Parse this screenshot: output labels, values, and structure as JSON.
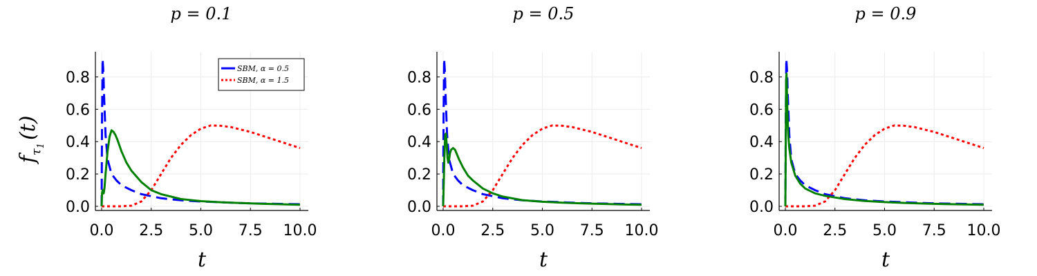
{
  "chart_data": [
    {
      "type": "line",
      "title": "p = 0.1",
      "xlabel": "t",
      "ylabel": "f_τ1(t)",
      "ylabel_main": "f",
      "ylabel_sub": "τ",
      "ylabel_subsub": "1",
      "ylabel_arg": "(t)",
      "xlim": [
        0,
        10
      ],
      "ylim": [
        0,
        0.93
      ],
      "xticks": [
        "0.0",
        "2.5",
        "5.0",
        "7.5",
        "10.0"
      ],
      "yticks": [
        "0.0",
        "0.2",
        "0.4",
        "0.6",
        "0.8"
      ],
      "grid": true,
      "legend": {
        "placement": "top-right",
        "entries": [
          "SBM, α = 0.5",
          "SBM, α = 1.5"
        ]
      },
      "series": [
        {
          "name": "SBM, α = 0.5",
          "color": "#0000ff",
          "style": "dashed",
          "x": [
            0.0,
            0.02,
            0.05,
            0.08,
            0.1,
            0.12,
            0.15,
            0.2,
            0.3,
            0.5,
            0.75,
            1.0,
            1.5,
            2.0,
            3.0,
            4.0,
            5.0,
            6.0,
            7.0,
            8.0,
            9.0,
            10.0
          ],
          "y": [
            0.0,
            0.55,
            0.91,
            0.85,
            0.78,
            0.7,
            0.6,
            0.44,
            0.29,
            0.2,
            0.16,
            0.13,
            0.1,
            0.075,
            0.05,
            0.037,
            0.03,
            0.025,
            0.02,
            0.017,
            0.015,
            0.013
          ]
        },
        {
          "name": "SBM, α = 1.5",
          "color": "#ff0000",
          "style": "dotted",
          "x": [
            0.0,
            0.5,
            1.0,
            1.5,
            2.0,
            2.5,
            3.0,
            3.5,
            4.0,
            4.5,
            5.0,
            5.5,
            6.0,
            6.5,
            7.0,
            7.5,
            8.0,
            8.5,
            9.0,
            9.5,
            10.0
          ],
          "y": [
            0.0,
            0.0,
            0.0,
            0.004,
            0.03,
            0.1,
            0.2,
            0.3,
            0.38,
            0.44,
            0.48,
            0.5,
            0.498,
            0.49,
            0.475,
            0.46,
            0.44,
            0.42,
            0.4,
            0.38,
            0.36
          ]
        },
        {
          "color": "#008000",
          "style": "solid",
          "x": [
            0.0,
            0.02,
            0.05,
            0.08,
            0.1,
            0.12,
            0.15,
            0.2,
            0.3,
            0.4,
            0.5,
            0.6,
            0.7,
            0.8,
            1.0,
            1.25,
            1.5,
            2.0,
            2.5,
            3.0,
            4.0,
            5.0,
            6.0,
            7.0,
            8.0,
            9.0,
            10.0
          ],
          "y": [
            0.0,
            0.08,
            0.1,
            0.09,
            0.08,
            0.09,
            0.12,
            0.2,
            0.34,
            0.43,
            0.47,
            0.46,
            0.44,
            0.41,
            0.34,
            0.27,
            0.22,
            0.15,
            0.1,
            0.075,
            0.045,
            0.032,
            0.025,
            0.02,
            0.016,
            0.013,
            0.01
          ]
        }
      ]
    },
    {
      "type": "line",
      "title": "p = 0.5",
      "xlabel": "t",
      "xlim": [
        0,
        10
      ],
      "ylim": [
        0,
        0.93
      ],
      "xticks": [
        "0.0",
        "2.5",
        "5.0",
        "7.5",
        "10.0"
      ],
      "yticks": [
        "0.0",
        "0.2",
        "0.4",
        "0.6",
        "0.8"
      ],
      "grid": true,
      "series": [
        {
          "name": "SBM, α = 0.5",
          "color": "#0000ff",
          "style": "dashed",
          "x": [
            0.0,
            0.02,
            0.05,
            0.08,
            0.1,
            0.12,
            0.15,
            0.2,
            0.3,
            0.5,
            0.75,
            1.0,
            1.5,
            2.0,
            3.0,
            4.0,
            5.0,
            6.0,
            7.0,
            8.0,
            9.0,
            10.0
          ],
          "y": [
            0.0,
            0.55,
            0.91,
            0.85,
            0.78,
            0.7,
            0.6,
            0.44,
            0.29,
            0.2,
            0.16,
            0.13,
            0.1,
            0.075,
            0.05,
            0.037,
            0.03,
            0.025,
            0.02,
            0.017,
            0.015,
            0.013
          ]
        },
        {
          "name": "SBM, α = 1.5",
          "color": "#ff0000",
          "style": "dotted",
          "x": [
            0.0,
            0.5,
            1.0,
            1.5,
            2.0,
            2.5,
            3.0,
            3.5,
            4.0,
            4.5,
            5.0,
            5.5,
            6.0,
            6.5,
            7.0,
            7.5,
            8.0,
            8.5,
            9.0,
            9.5,
            10.0
          ],
          "y": [
            0.0,
            0.0,
            0.0,
            0.004,
            0.03,
            0.1,
            0.2,
            0.3,
            0.38,
            0.44,
            0.48,
            0.5,
            0.498,
            0.49,
            0.475,
            0.46,
            0.44,
            0.42,
            0.4,
            0.38,
            0.36
          ]
        },
        {
          "color": "#008000",
          "style": "solid",
          "x": [
            0.0,
            0.03,
            0.06,
            0.1,
            0.14,
            0.18,
            0.22,
            0.26,
            0.3,
            0.35,
            0.4,
            0.5,
            0.6,
            0.7,
            0.8,
            1.0,
            1.25,
            1.5,
            2.0,
            2.5,
            3.0,
            4.0,
            5.0,
            6.0,
            7.0,
            8.0,
            9.0,
            10.0
          ],
          "y": [
            0.0,
            0.15,
            0.3,
            0.44,
            0.45,
            0.38,
            0.3,
            0.27,
            0.29,
            0.33,
            0.35,
            0.36,
            0.35,
            0.32,
            0.29,
            0.24,
            0.19,
            0.16,
            0.11,
            0.08,
            0.06,
            0.038,
            0.028,
            0.022,
            0.018,
            0.015,
            0.012,
            0.01
          ]
        }
      ]
    },
    {
      "type": "line",
      "title": "p = 0.9",
      "xlabel": "t",
      "xlim": [
        0,
        10
      ],
      "ylim": [
        0,
        0.93
      ],
      "xticks": [
        "0.0",
        "2.5",
        "5.0",
        "7.5",
        "10.0"
      ],
      "yticks": [
        "0.0",
        "0.2",
        "0.4",
        "0.6",
        "0.8"
      ],
      "grid": true,
      "series": [
        {
          "name": "SBM, α = 0.5",
          "color": "#0000ff",
          "style": "dashed",
          "x": [
            0.0,
            0.02,
            0.05,
            0.08,
            0.1,
            0.12,
            0.15,
            0.2,
            0.3,
            0.5,
            0.75,
            1.0,
            1.5,
            2.0,
            3.0,
            4.0,
            5.0,
            6.0,
            7.0,
            8.0,
            9.0,
            10.0
          ],
          "y": [
            0.0,
            0.55,
            0.91,
            0.85,
            0.78,
            0.7,
            0.6,
            0.44,
            0.29,
            0.2,
            0.16,
            0.13,
            0.1,
            0.075,
            0.05,
            0.037,
            0.03,
            0.025,
            0.02,
            0.017,
            0.015,
            0.013
          ]
        },
        {
          "name": "SBM, α = 1.5",
          "color": "#ff0000",
          "style": "dotted",
          "x": [
            0.0,
            0.5,
            1.0,
            1.5,
            2.0,
            2.5,
            3.0,
            3.5,
            4.0,
            4.5,
            5.0,
            5.5,
            6.0,
            6.5,
            7.0,
            7.5,
            8.0,
            8.5,
            9.0,
            9.5,
            10.0
          ],
          "y": [
            0.0,
            0.0,
            0.0,
            0.004,
            0.03,
            0.1,
            0.2,
            0.3,
            0.38,
            0.44,
            0.48,
            0.5,
            0.498,
            0.49,
            0.475,
            0.46,
            0.44,
            0.42,
            0.4,
            0.38,
            0.36
          ]
        },
        {
          "color": "#008000",
          "style": "solid",
          "x": [
            0.0,
            0.02,
            0.04,
            0.06,
            0.08,
            0.1,
            0.13,
            0.16,
            0.2,
            0.3,
            0.5,
            0.75,
            1.0,
            1.5,
            2.0,
            3.0,
            4.0,
            5.0,
            6.0,
            7.0,
            8.0,
            9.0,
            10.0
          ],
          "y": [
            0.0,
            0.4,
            0.78,
            0.82,
            0.7,
            0.6,
            0.5,
            0.42,
            0.36,
            0.27,
            0.19,
            0.14,
            0.11,
            0.08,
            0.065,
            0.045,
            0.033,
            0.026,
            0.021,
            0.017,
            0.014,
            0.012,
            0.01
          ]
        }
      ]
    }
  ]
}
